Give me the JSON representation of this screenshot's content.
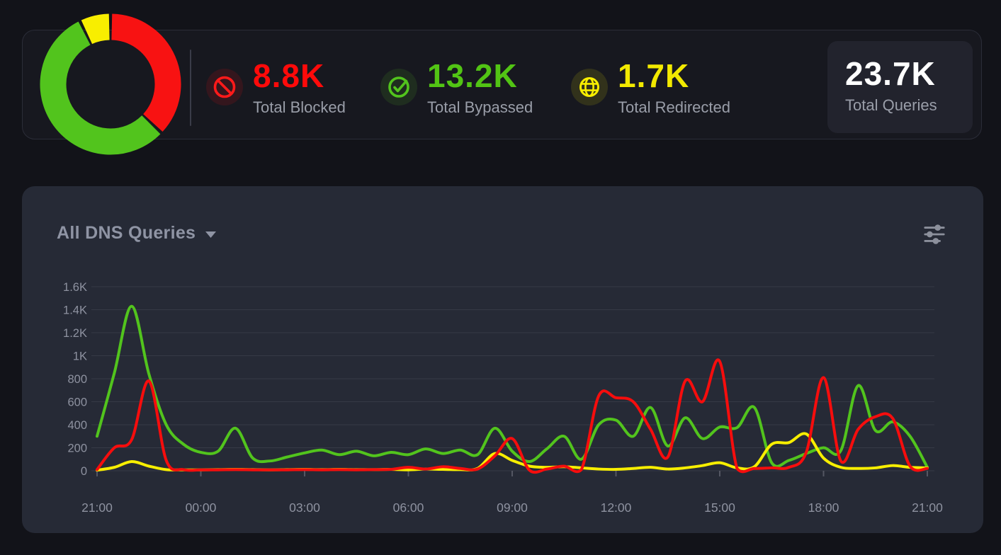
{
  "stats_bar": {
    "blocked": {
      "icon": "block-icon",
      "value": "8.8K",
      "label": "Total Blocked"
    },
    "bypassed": {
      "icon": "check-circle-icon",
      "value": "13.2K",
      "label": "Total Bypassed"
    },
    "redirected": {
      "icon": "globe-icon",
      "value": "1.7K",
      "label": "Total Redirected"
    },
    "total_queries": {
      "value": "23.7K",
      "label": "Total Queries"
    }
  },
  "donut": {
    "type": "doughnut",
    "start": "top",
    "direction": "clockwise",
    "total": 23700,
    "segments": [
      {
        "name": "blocked",
        "value": 8800,
        "color": "#f81212"
      },
      {
        "name": "bypassed",
        "value": 13200,
        "color": "#52c41d"
      },
      {
        "name": "redirected",
        "value": 1700,
        "color": "#f8ee00"
      }
    ]
  },
  "chart_panel": {
    "title": "All DNS Queries",
    "controls": [
      "dropdown-caret",
      "filter-sliders"
    ]
  },
  "chart_data": {
    "type": "line",
    "title": "All DNS Queries",
    "x_start_label": "21:00",
    "x_step_hours": 0.5,
    "x_hours_range": [
      0,
      24
    ],
    "x_tick_hours": [
      0,
      3,
      6,
      9,
      12,
      15,
      18,
      21,
      24
    ],
    "x_tick_labels": [
      "21:00",
      "00:00",
      "03:00",
      "06:00",
      "09:00",
      "12:00",
      "15:00",
      "18:00",
      "21:00"
    ],
    "y_ticks": [
      0,
      200,
      400,
      600,
      800,
      1000,
      1200,
      1400,
      1600
    ],
    "y_tick_labels": [
      "0",
      "200",
      "400",
      "600",
      "800",
      "1K",
      "1.2K",
      "1.4K",
      "1.6K"
    ],
    "ylim": [
      0,
      1600
    ],
    "grid": "horizontal",
    "legend": "none",
    "series": [
      {
        "name": "Bypassed",
        "color": "#52c41d",
        "values": [
          300,
          850,
          1430,
          840,
          400,
          230,
          160,
          170,
          370,
          110,
          85,
          120,
          155,
          180,
          140,
          170,
          130,
          160,
          140,
          190,
          150,
          180,
          140,
          370,
          170,
          80,
          190,
          300,
          100,
          400,
          440,
          300,
          550,
          215,
          460,
          280,
          380,
          375,
          550,
          70,
          90,
          150,
          200,
          175,
          740,
          350,
          425,
          300,
          30
        ]
      },
      {
        "name": "Redirected",
        "color": "#f7ee00",
        "values": [
          5,
          30,
          80,
          40,
          10,
          8,
          8,
          10,
          12,
          10,
          8,
          10,
          12,
          10,
          12,
          10,
          10,
          12,
          8,
          15,
          12,
          10,
          20,
          150,
          90,
          40,
          30,
          35,
          25,
          15,
          12,
          20,
          30,
          15,
          25,
          45,
          70,
          25,
          35,
          230,
          245,
          320,
          110,
          30,
          20,
          25,
          45,
          30,
          25
        ]
      },
      {
        "name": "Blocked",
        "color": "#f60d0d",
        "values": [
          10,
          200,
          270,
          780,
          90,
          10,
          8,
          8,
          10,
          8,
          8,
          8,
          10,
          8,
          10,
          8,
          10,
          12,
          30,
          15,
          35,
          20,
          15,
          130,
          280,
          5,
          15,
          40,
          10,
          650,
          635,
          600,
          360,
          120,
          780,
          600,
          950,
          20,
          20,
          25,
          30,
          160,
          810,
          85,
          360,
          470,
          455,
          40,
          20
        ]
      }
    ]
  },
  "theme": {
    "page_bg": "#121319",
    "card_bg": "#17181f",
    "card_border": "#2b2d38",
    "panel_bg": "#262a36",
    "chip_bg": "#22232d",
    "divider": "#3a3c48",
    "text_muted": "#9a9ea9",
    "title_color": "#8f94a4",
    "tick_text": "#8e92a0",
    "grid_line": "#363a46",
    "tick_mark": "#545763",
    "red": "#f60d0d",
    "green": "#52c41d",
    "yellow": "#f7ee00",
    "white": "#ffffff"
  }
}
